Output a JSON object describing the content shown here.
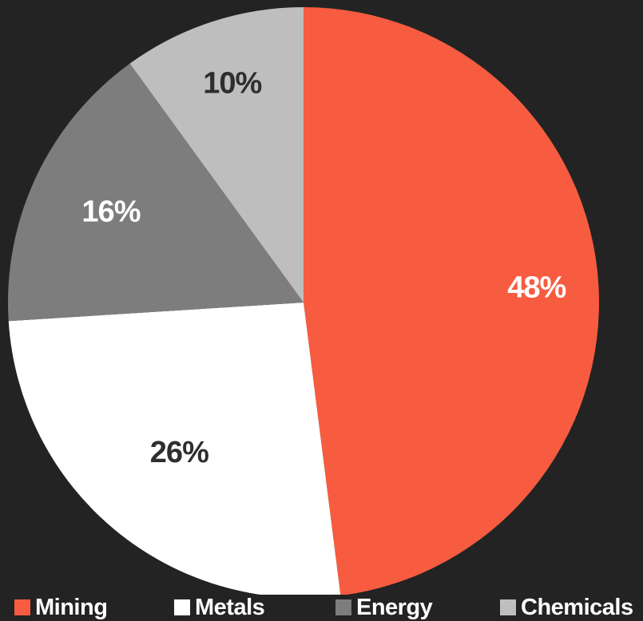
{
  "chart_data": {
    "type": "pie",
    "slices": [
      {
        "name": "Mining",
        "value": 48,
        "label": "48%",
        "color": "#f75c40",
        "label_color": "#ffffff"
      },
      {
        "name": "Metals",
        "value": 26,
        "label": "26%",
        "color": "#ffffff",
        "label_color": "#2e2e2e"
      },
      {
        "name": "Energy",
        "value": 16,
        "label": "16%",
        "color": "#7d7d7d",
        "label_color": "#ffffff"
      },
      {
        "name": "Chemicals",
        "value": 10,
        "label": "10%",
        "color": "#bebebe",
        "label_color": "#2e2e2e"
      }
    ],
    "legend": {
      "placement": "bottom"
    },
    "start": "top",
    "direction": "clockwise"
  },
  "colors": {
    "background": "#232323"
  }
}
